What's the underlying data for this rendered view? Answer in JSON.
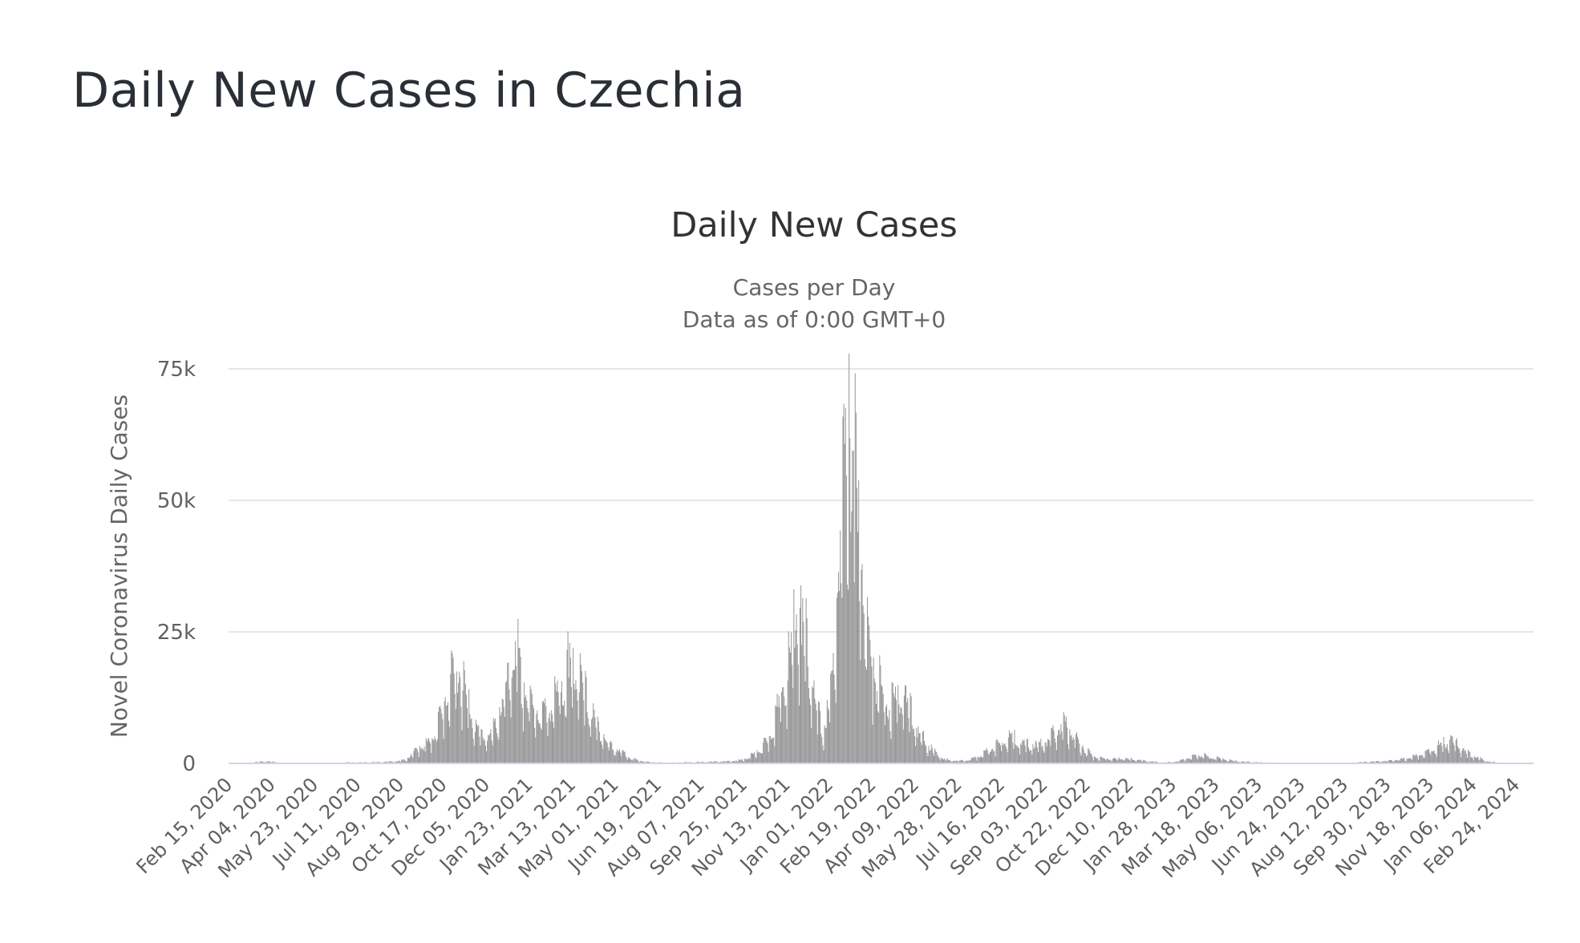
{
  "page": {
    "title": "Daily New Cases in Czechia"
  },
  "chart_data": {
    "type": "bar",
    "title": "Daily New Cases",
    "subtitle_lines": [
      "Cases per Day",
      "Data as of 0:00 GMT+0"
    ],
    "ylabel": "Novel Coronavirus Daily Cases",
    "xlabel": "",
    "ylim": [
      0,
      75000
    ],
    "yticks": [
      0,
      25000,
      50000,
      75000
    ],
    "ytick_labels": [
      "0",
      "25k",
      "50k",
      "75k"
    ],
    "x_range": [
      "2020-02-15",
      "2024-03-15"
    ],
    "xtick_labels": [
      "Feb 15, 2020",
      "Apr 04, 2020",
      "May 23, 2020",
      "Jul 11, 2020",
      "Aug 29, 2020",
      "Oct 17, 2020",
      "Dec 05, 2020",
      "Jan 23, 2021",
      "Mar 13, 2021",
      "May 01, 2021",
      "Jun 19, 2021",
      "Aug 07, 2021",
      "Sep 25, 2021",
      "Nov 13, 2021",
      "Jan 01, 2022",
      "Feb 19, 2022",
      "Apr 09, 2022",
      "May 28, 2022",
      "Jul 16, 2022",
      "Sep 03, 2022",
      "Oct 22, 2022",
      "Dec 10, 2022",
      "Jan 28, 2023",
      "Mar 18, 2023",
      "May 06, 2023",
      "Jun 24, 2023",
      "Aug 12, 2023",
      "Sep 30, 2023",
      "Nov 18, 2023",
      "Jan 06, 2024",
      "Feb 24, 2024"
    ],
    "grid": true,
    "legend": "none",
    "bar_color": "#999999",
    "series": [
      {
        "values": [
          [
            "2020-02-15",
            0
          ],
          [
            "2020-03-01",
            2
          ],
          [
            "2020-03-08",
            30
          ],
          [
            "2020-03-15",
            150
          ],
          [
            "2020-03-22",
            250
          ],
          [
            "2020-03-29",
            300
          ],
          [
            "2020-04-05",
            250
          ],
          [
            "2020-04-12",
            150
          ],
          [
            "2020-04-19",
            100
          ],
          [
            "2020-05-01",
            50
          ],
          [
            "2020-05-15",
            40
          ],
          [
            "2020-06-01",
            50
          ],
          [
            "2020-06-15",
            80
          ],
          [
            "2020-07-01",
            150
          ],
          [
            "2020-07-15",
            150
          ],
          [
            "2020-08-01",
            200
          ],
          [
            "2020-08-15",
            250
          ],
          [
            "2020-08-29",
            400
          ],
          [
            "2020-09-05",
            700
          ],
          [
            "2020-09-12",
            1500
          ],
          [
            "2020-09-19",
            2500
          ],
          [
            "2020-09-26",
            3000
          ],
          [
            "2020-10-03",
            3500
          ],
          [
            "2020-10-10",
            6000
          ],
          [
            "2020-10-17",
            9000
          ],
          [
            "2020-10-24",
            12000
          ],
          [
            "2020-10-31",
            14500
          ],
          [
            "2020-11-05",
            15000
          ],
          [
            "2020-11-10",
            12000
          ],
          [
            "2020-11-15",
            9000
          ],
          [
            "2020-11-22",
            6000
          ],
          [
            "2020-11-29",
            4500
          ],
          [
            "2020-12-06",
            4000
          ],
          [
            "2020-12-13",
            5000
          ],
          [
            "2020-12-20",
            8000
          ],
          [
            "2020-12-27",
            11000
          ],
          [
            "2021-01-03",
            15000
          ],
          [
            "2021-01-08",
            17500
          ],
          [
            "2021-01-15",
            12000
          ],
          [
            "2021-01-22",
            10000
          ],
          [
            "2021-01-29",
            8500
          ],
          [
            "2021-02-05",
            8000
          ],
          [
            "2021-02-12",
            8500
          ],
          [
            "2021-02-19",
            9000
          ],
          [
            "2021-02-26",
            11000
          ],
          [
            "2021-03-05",
            14000
          ],
          [
            "2021-03-10",
            15500
          ],
          [
            "2021-03-17",
            15000
          ],
          [
            "2021-03-24",
            12500
          ],
          [
            "2021-03-31",
            9000
          ],
          [
            "2021-04-07",
            7000
          ],
          [
            "2021-04-14",
            5000
          ],
          [
            "2021-04-21",
            3500
          ],
          [
            "2021-04-28",
            2500
          ],
          [
            "2021-05-05",
            2000
          ],
          [
            "2021-05-12",
            1500
          ],
          [
            "2021-05-19",
            800
          ],
          [
            "2021-05-26",
            500
          ],
          [
            "2021-06-02",
            300
          ],
          [
            "2021-06-09",
            200
          ],
          [
            "2021-06-19",
            150
          ],
          [
            "2021-07-01",
            100
          ],
          [
            "2021-07-15",
            150
          ],
          [
            "2021-08-01",
            200
          ],
          [
            "2021-08-15",
            250
          ],
          [
            "2021-09-01",
            300
          ],
          [
            "2021-09-15",
            400
          ],
          [
            "2021-09-25",
            600
          ],
          [
            "2021-10-02",
            1000
          ],
          [
            "2021-10-09",
            1800
          ],
          [
            "2021-10-16",
            2500
          ],
          [
            "2021-10-23",
            4000
          ],
          [
            "2021-10-30",
            7000
          ],
          [
            "2021-11-06",
            10000
          ],
          [
            "2021-11-13",
            14000
          ],
          [
            "2021-11-18",
            18000
          ],
          [
            "2021-11-23",
            22000
          ],
          [
            "2021-11-27",
            24000
          ],
          [
            "2021-12-01",
            22000
          ],
          [
            "2021-12-05",
            18000
          ],
          [
            "2021-12-10",
            14000
          ],
          [
            "2021-12-15",
            10000
          ],
          [
            "2021-12-20",
            7000
          ],
          [
            "2021-12-25",
            4500
          ],
          [
            "2021-12-30",
            9000
          ],
          [
            "2022-01-04",
            13000
          ],
          [
            "2022-01-08",
            22000
          ],
          [
            "2022-01-12",
            32000
          ],
          [
            "2022-01-16",
            40000
          ],
          [
            "2022-01-20",
            50000
          ],
          [
            "2022-01-23",
            58000
          ],
          [
            "2022-01-26",
            56000
          ],
          [
            "2022-01-29",
            50000
          ],
          [
            "2022-02-01",
            42000
          ],
          [
            "2022-02-05",
            35000
          ],
          [
            "2022-02-10",
            25000
          ],
          [
            "2022-02-15",
            18000
          ],
          [
            "2022-02-22",
            14000
          ],
          [
            "2022-03-01",
            11000
          ],
          [
            "2022-03-08",
            9000
          ],
          [
            "2022-03-15",
            10000
          ],
          [
            "2022-03-22",
            11000
          ],
          [
            "2022-03-29",
            10000
          ],
          [
            "2022-04-05",
            8000
          ],
          [
            "2022-04-12",
            5000
          ],
          [
            "2022-04-19",
            3500
          ],
          [
            "2022-04-26",
            2500
          ],
          [
            "2022-05-03",
            1500
          ],
          [
            "2022-05-10",
            800
          ],
          [
            "2022-05-17",
            500
          ],
          [
            "2022-05-28",
            400
          ],
          [
            "2022-06-07",
            500
          ],
          [
            "2022-06-14",
            800
          ],
          [
            "2022-06-21",
            1200
          ],
          [
            "2022-06-28",
            1800
          ],
          [
            "2022-07-05",
            2500
          ],
          [
            "2022-07-12",
            3000
          ],
          [
            "2022-07-19",
            3800
          ],
          [
            "2022-07-26",
            4200
          ],
          [
            "2022-08-02",
            3800
          ],
          [
            "2022-08-09",
            3200
          ],
          [
            "2022-08-16",
            2800
          ],
          [
            "2022-08-23",
            2800
          ],
          [
            "2022-08-30",
            3000
          ],
          [
            "2022-09-06",
            3500
          ],
          [
            "2022-09-13",
            4500
          ],
          [
            "2022-09-20",
            5500
          ],
          [
            "2022-09-27",
            6000
          ],
          [
            "2022-10-04",
            5000
          ],
          [
            "2022-10-11",
            3500
          ],
          [
            "2022-10-18",
            2500
          ],
          [
            "2022-10-25",
            1500
          ],
          [
            "2022-11-01",
            1000
          ],
          [
            "2022-11-08",
            800
          ],
          [
            "2022-11-15",
            800
          ],
          [
            "2022-11-22",
            700
          ],
          [
            "2022-11-29",
            800
          ],
          [
            "2022-12-06",
            700
          ],
          [
            "2022-12-13",
            600
          ],
          [
            "2022-12-20",
            500
          ],
          [
            "2022-12-27",
            400
          ],
          [
            "2023-01-03",
            300
          ],
          [
            "2023-01-10",
            200
          ],
          [
            "2023-01-17",
            150
          ],
          [
            "2023-01-28",
            200
          ],
          [
            "2023-02-04",
            400
          ],
          [
            "2023-02-11",
            700
          ],
          [
            "2023-02-18",
            1000
          ],
          [
            "2023-02-25",
            1200
          ],
          [
            "2023-03-04",
            1200
          ],
          [
            "2023-03-11",
            1000
          ],
          [
            "2023-03-18",
            900
          ],
          [
            "2023-03-25",
            700
          ],
          [
            "2023-04-01",
            500
          ],
          [
            "2023-04-08",
            400
          ],
          [
            "2023-04-15",
            300
          ],
          [
            "2023-05-06",
            150
          ],
          [
            "2023-06-01",
            100
          ],
          [
            "2023-07-01",
            80
          ],
          [
            "2023-08-01",
            80
          ],
          [
            "2023-08-20",
            100
          ],
          [
            "2023-09-01",
            200
          ],
          [
            "2023-09-15",
            300
          ],
          [
            "2023-09-30",
            400
          ],
          [
            "2023-10-07",
            500
          ],
          [
            "2023-10-14",
            600
          ],
          [
            "2023-10-21",
            800
          ],
          [
            "2023-10-28",
            1000
          ],
          [
            "2023-11-04",
            1300
          ],
          [
            "2023-11-11",
            1700
          ],
          [
            "2023-11-18",
            2000
          ],
          [
            "2023-11-25",
            2500
          ],
          [
            "2023-12-02",
            3000
          ],
          [
            "2023-12-09",
            3500
          ],
          [
            "2023-12-16",
            3200
          ],
          [
            "2023-12-23",
            2500
          ],
          [
            "2023-12-30",
            1500
          ],
          [
            "2024-01-06",
            1200
          ],
          [
            "2024-01-13",
            800
          ],
          [
            "2024-01-20",
            400
          ],
          [
            "2024-01-27",
            200
          ],
          [
            "2024-02-10",
            100
          ],
          [
            "2024-03-15",
            50
          ]
        ],
        "peaks": [
          [
            "2022-01-31",
            66700
          ],
          [
            "2022-01-27",
            59500
          ],
          [
            "2022-02-02",
            44000
          ],
          [
            "2022-01-25",
            44000
          ],
          [
            "2021-11-24",
            28300
          ],
          [
            "2021-11-30",
            22500
          ],
          [
            "2022-02-08",
            30000
          ],
          [
            "2021-01-05",
            17800
          ],
          [
            "2020-11-03",
            15300
          ],
          [
            "2021-03-09",
            16300
          ]
        ]
      }
    ]
  }
}
